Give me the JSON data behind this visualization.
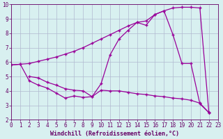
{
  "line1_x": [
    0,
    1,
    2,
    3,
    4,
    5,
    6,
    7,
    8,
    9,
    10,
    11,
    12,
    13,
    14,
    15,
    16,
    17,
    18,
    19,
    20,
    21,
    22
  ],
  "line1_y": [
    5.8,
    5.85,
    5.9,
    6.05,
    6.2,
    6.35,
    6.55,
    6.75,
    7.0,
    7.3,
    7.6,
    7.9,
    8.2,
    8.5,
    8.75,
    8.85,
    9.3,
    9.55,
    9.75,
    9.8,
    9.8,
    9.75,
    2.5
  ],
  "line2_x": [
    0,
    1,
    2,
    3,
    4,
    5,
    6,
    7,
    8,
    9,
    10,
    11,
    12,
    13,
    14,
    15,
    16,
    17,
    18,
    19,
    20,
    21,
    22
  ],
  "line2_y": [
    5.8,
    5.85,
    4.7,
    4.4,
    4.2,
    3.85,
    3.5,
    3.65,
    3.55,
    3.6,
    4.05,
    4.0,
    4.0,
    3.9,
    3.8,
    3.75,
    3.65,
    3.6,
    3.5,
    3.45,
    3.35,
    3.15,
    2.5
  ],
  "line3_x": [
    2,
    3,
    4,
    5,
    6,
    7,
    8,
    9,
    10,
    11,
    12,
    13,
    14,
    15,
    16,
    17,
    18,
    19,
    20,
    21,
    22
  ],
  "line3_y": [
    5.0,
    4.9,
    4.6,
    4.4,
    4.15,
    4.05,
    4.0,
    3.6,
    4.5,
    6.5,
    7.6,
    8.2,
    8.75,
    8.55,
    9.3,
    9.55,
    7.9,
    5.9,
    5.9,
    3.1,
    2.5
  ],
  "color": "#990099",
  "marker": "+",
  "markersize": 3,
  "linewidth": 0.9,
  "bg_color": "#d8f0f0",
  "grid_color": "#b0b8d0",
  "xlabel": "Windchill (Refroidissement éolien,°C)",
  "xlim": [
    0,
    23
  ],
  "ylim": [
    2,
    10
  ],
  "xticks": [
    0,
    1,
    2,
    3,
    4,
    5,
    6,
    7,
    8,
    9,
    10,
    11,
    12,
    13,
    14,
    15,
    16,
    17,
    18,
    19,
    20,
    21,
    22,
    23
  ],
  "yticks": [
    2,
    3,
    4,
    5,
    6,
    7,
    8,
    9,
    10
  ],
  "tick_fontsize": 5.5,
  "xlabel_fontsize": 6,
  "axis_color": "#660066"
}
